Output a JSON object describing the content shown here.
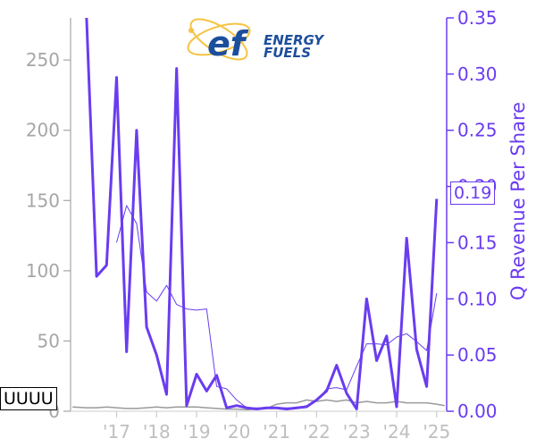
{
  "logo": {
    "brand_text_line1": "ENERGY",
    "brand_text_line2": "FUELS",
    "brand_mark": "ef"
  },
  "ticker": "UUUU",
  "current_value_label": "0.19",
  "colors": {
    "revenue": "#6a3cf0",
    "price": "#9a9a9a",
    "left_ticks": "#a6a6a6",
    "logo_blue": "#1c4e9c",
    "logo_orange": "#f5c342"
  },
  "chart_data": {
    "type": "line",
    "title": "",
    "ylabel_right": "Q Revenue Per Share",
    "ylabel_left": "",
    "x_ticks": [
      "'17",
      "'18",
      "'19",
      "'20",
      "'21",
      "'22",
      "'23",
      "'24",
      "'25"
    ],
    "x_tick_years": [
      2017,
      2018,
      2019,
      2020,
      2021,
      2022,
      2023,
      2024,
      2025
    ],
    "xlim": [
      2015.85,
      2025.25
    ],
    "left_axis": {
      "ylim": [
        0,
        280
      ],
      "ticks": [
        0,
        50,
        100,
        150,
        200,
        250
      ]
    },
    "right_axis": {
      "ylim": [
        0,
        0.35
      ],
      "ticks": [
        0.0,
        0.05,
        0.1,
        0.15,
        0.2,
        0.25,
        0.3,
        0.35
      ],
      "tick_labels": [
        "0.00",
        "0.05",
        "0.10",
        "0.15",
        "0.20",
        "0.25",
        "0.30",
        "0.35"
      ]
    },
    "series": [
      {
        "name": "Q Revenue Per Share",
        "axis": "right",
        "x": [
          2016.25,
          2016.5,
          2016.75,
          2017.0,
          2017.25,
          2017.5,
          2017.75,
          2018.0,
          2018.25,
          2018.5,
          2018.75,
          2019.0,
          2019.25,
          2019.5,
          2019.75,
          2020.0,
          2020.25,
          2020.5,
          2020.75,
          2021.0,
          2021.25,
          2021.5,
          2021.75,
          2022.0,
          2022.25,
          2022.5,
          2022.75,
          2023.0,
          2023.25,
          2023.5,
          2023.75,
          2024.0,
          2024.25,
          2024.5,
          2024.75,
          2025.0
        ],
        "values": [
          0.35,
          0.12,
          0.13,
          0.297,
          0.053,
          0.25,
          0.075,
          0.05,
          0.015,
          0.305,
          0.005,
          0.033,
          0.018,
          0.032,
          0.003,
          0.005,
          0.003,
          0.002,
          0.003,
          0.003,
          0.002,
          0.003,
          0.004,
          0.01,
          0.018,
          0.041,
          0.016,
          0.002,
          0.1,
          0.045,
          0.067,
          0.004,
          0.154,
          0.055,
          0.022,
          0.189
        ]
      },
      {
        "name": "Q Revenue Per Share (TTM avg)",
        "axis": "right",
        "x": [
          2017.0,
          2017.25,
          2017.5,
          2017.75,
          2018.0,
          2018.25,
          2018.5,
          2018.75,
          2019.0,
          2019.25,
          2019.5,
          2019.75,
          2020.0,
          2020.25,
          2020.5,
          2020.75,
          2021.0,
          2021.25,
          2021.5,
          2021.75,
          2022.0,
          2022.25,
          2022.5,
          2022.75,
          2023.0,
          2023.25,
          2023.5,
          2023.75,
          2024.0,
          2024.25,
          2024.5,
          2024.75,
          2025.0
        ],
        "values": [
          0.15,
          0.183,
          0.167,
          0.106,
          0.098,
          0.112,
          0.095,
          0.091,
          0.09,
          0.091,
          0.022,
          0.02,
          0.01,
          0.003,
          0.003,
          0.003,
          0.003,
          0.003,
          0.003,
          0.005,
          0.009,
          0.02,
          0.021,
          0.019,
          0.04,
          0.06,
          0.06,
          0.059,
          0.066,
          0.069,
          0.062,
          0.054,
          0.105
        ]
      },
      {
        "name": "Share Price",
        "axis": "left",
        "x": [
          2015.9,
          2016.25,
          2016.5,
          2016.75,
          2017.0,
          2017.25,
          2017.5,
          2017.75,
          2018.0,
          2018.25,
          2018.5,
          2018.75,
          2019.0,
          2019.25,
          2019.5,
          2019.75,
          2020.0,
          2020.25,
          2020.5,
          2020.75,
          2021.0,
          2021.25,
          2021.5,
          2021.75,
          2022.0,
          2022.25,
          2022.5,
          2022.75,
          2023.0,
          2023.25,
          2023.5,
          2023.75,
          2024.0,
          2024.25,
          2024.5,
          2024.75,
          2025.0,
          2025.2
        ],
        "values": [
          3,
          2.5,
          2.5,
          3,
          2.5,
          2,
          2,
          2.5,
          3,
          2.5,
          3,
          3,
          3,
          2.5,
          2,
          1.5,
          1.5,
          1,
          1.5,
          2,
          5,
          6,
          6,
          8,
          7,
          8,
          7,
          8,
          6,
          7,
          6,
          6,
          7,
          6,
          6,
          6,
          5,
          4
        ]
      }
    ],
    "grid": false,
    "legend": "none"
  }
}
